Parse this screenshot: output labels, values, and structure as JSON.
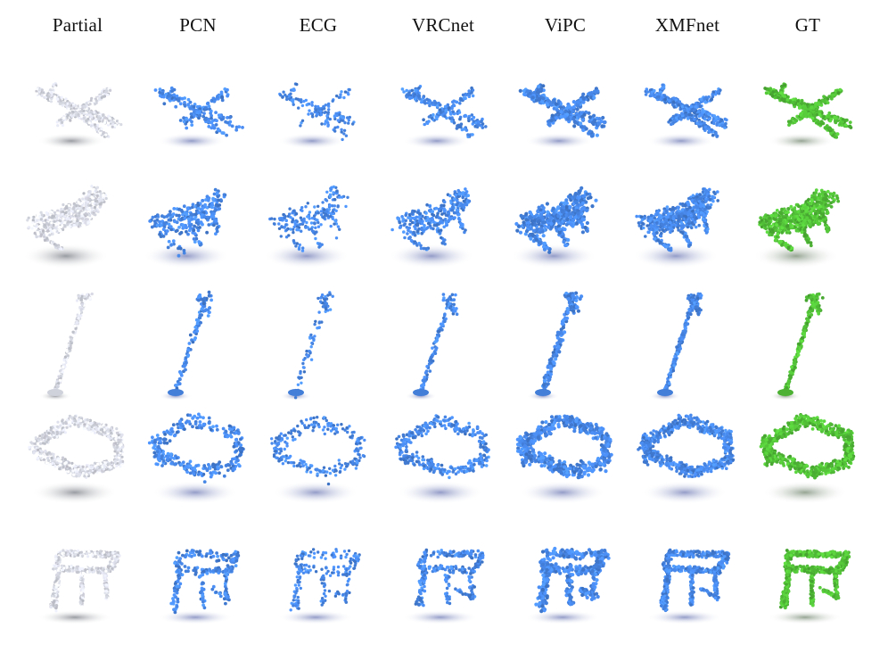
{
  "columns": [
    {
      "label": "Partial",
      "variant": "partial"
    },
    {
      "label": "PCN",
      "variant": "pcn"
    },
    {
      "label": "ECG",
      "variant": "ecg"
    },
    {
      "label": "VRCnet",
      "variant": "vrcnet"
    },
    {
      "label": "ViPC",
      "variant": "vipc"
    },
    {
      "label": "XMFnet",
      "variant": "xmfnet"
    },
    {
      "label": "GT",
      "variant": "gt"
    }
  ],
  "rows": [
    {
      "object": "airplane"
    },
    {
      "object": "lounge-chair"
    },
    {
      "object": "lamp"
    },
    {
      "object": "sofa"
    },
    {
      "object": "table"
    }
  ],
  "colors": {
    "partial": "#e6e8f3",
    "prediction": "#4a8cf0",
    "ground_truth": "#55c63a",
    "shadow": "#9aa0b6",
    "background": "#ffffff"
  }
}
